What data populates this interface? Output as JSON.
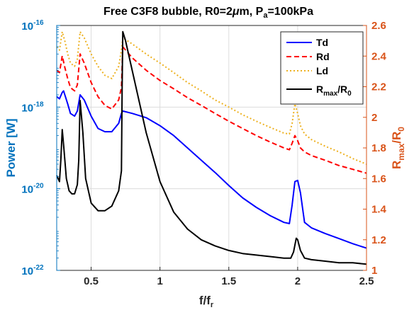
{
  "chart_data": {
    "type": "line",
    "title_parts": [
      "Free C3F8 bubble, R0=2",
      "μ",
      "m, P",
      "a",
      "=100kPa"
    ],
    "xlabel": "f/f",
    "xlabel_sub": "r",
    "ylabel_left": "Power [W]",
    "ylabel_right": "R",
    "ylabel_right_sub1": "max",
    "ylabel_right_mid": "/R",
    "ylabel_right_sub2": "0",
    "xlim": [
      0.25,
      2.5
    ],
    "ylim_left": [
      1e-22,
      1e-16
    ],
    "ylim_right": [
      1.0,
      2.6
    ],
    "y_left_scale": "log",
    "x_ticks": [
      0.5,
      1,
      1.5,
      2,
      2.5
    ],
    "x_tick_labels": [
      "0.5",
      "1",
      "1.5",
      "2",
      "2.5"
    ],
    "y_left_ticks": [
      -22,
      -20,
      -18,
      -16
    ],
    "y_left_tick_base": "10",
    "y_left_tick_exps": [
      "-22",
      "-20",
      "-18",
      "-16"
    ],
    "y_right_ticks": [
      1,
      1.2,
      1.4,
      1.6,
      1.8,
      2,
      2.2,
      2.4,
      2.6
    ],
    "y_right_tick_labels": [
      "1",
      "1.2",
      "1.4",
      "1.6",
      "1.8",
      "2",
      "2.2",
      "2.4",
      "2.6"
    ],
    "grid": true,
    "legend_position": "top-right",
    "colors": {
      "left_axis": "#0072bd",
      "right_axis": "#d95319",
      "Td": "#0000ff",
      "Rd": "#ff0000",
      "Ld": "#edb120",
      "Rmax": "#000000"
    },
    "series": [
      {
        "name": "Td",
        "axis": "left",
        "style": "solid",
        "x": [
          0.25,
          0.27,
          0.29,
          0.3,
          0.33,
          0.35,
          0.38,
          0.4,
          0.42,
          0.45,
          0.5,
          0.55,
          0.6,
          0.65,
          0.7,
          0.72,
          0.73,
          0.8,
          0.9,
          1.0,
          1.1,
          1.2,
          1.3,
          1.4,
          1.5,
          1.6,
          1.7,
          1.8,
          1.9,
          1.94,
          1.96,
          1.98,
          2.0,
          2.02,
          2.05,
          2.1,
          2.2,
          2.3,
          2.4,
          2.5
        ],
        "y": [
          1.8e-18,
          1.6e-18,
          2.3e-18,
          2.5e-18,
          1.2e-18,
          7e-19,
          6e-19,
          8e-19,
          2e-18,
          1.5e-18,
          6e-19,
          3e-19,
          2.5e-19,
          2.5e-19,
          4e-19,
          7e-19,
          8e-19,
          7e-19,
          5.5e-19,
          3.5e-19,
          2e-19,
          1e-19,
          5e-20,
          2.5e-20,
          1.2e-20,
          6e-21,
          3.5e-21,
          2.2e-21,
          1.5e-21,
          1.4e-21,
          4e-21,
          1.5e-20,
          1.6e-20,
          8e-21,
          1.5e-21,
          1.1e-21,
          8e-22,
          6e-22,
          4.5e-22,
          3.5e-22
        ]
      },
      {
        "name": "Rd",
        "axis": "left",
        "style": "dashed",
        "x": [
          0.25,
          0.27,
          0.29,
          0.31,
          0.33,
          0.35,
          0.38,
          0.4,
          0.42,
          0.45,
          0.5,
          0.55,
          0.6,
          0.65,
          0.7,
          0.72,
          0.73,
          0.8,
          0.9,
          1.0,
          1.1,
          1.2,
          1.3,
          1.4,
          1.5,
          1.6,
          1.7,
          1.8,
          1.9,
          1.94,
          1.96,
          1.98,
          2.0,
          2.02,
          2.05,
          2.1,
          2.2,
          2.3,
          2.4,
          2.5
        ],
        "y": [
          8e-18,
          7e-18,
          1.8e-17,
          9e-18,
          5e-18,
          3e-18,
          2.5e-18,
          3.5e-18,
          2e-17,
          1.2e-17,
          4e-18,
          1.8e-18,
          1.1e-18,
          9e-19,
          1.5e-18,
          3e-18,
          3e-17,
          1.6e-17,
          8e-18,
          4.5e-18,
          2.8e-18,
          1.7e-18,
          1.1e-18,
          7e-19,
          4.5e-19,
          3e-19,
          2e-19,
          1.4e-19,
          1e-19,
          9e-20,
          1.3e-19,
          2e-19,
          1.5e-19,
          1e-19,
          8e-20,
          6.5e-20,
          5e-20,
          3.7e-20,
          3e-20,
          2.4e-20
        ]
      },
      {
        "name": "Ld",
        "axis": "left",
        "style": "dotted",
        "x": [
          0.25,
          0.27,
          0.29,
          0.31,
          0.33,
          0.35,
          0.38,
          0.4,
          0.42,
          0.45,
          0.5,
          0.55,
          0.6,
          0.65,
          0.7,
          0.72,
          0.73,
          0.8,
          0.9,
          1.0,
          1.1,
          1.2,
          1.3,
          1.4,
          1.5,
          1.6,
          1.7,
          1.8,
          1.9,
          1.94,
          1.96,
          1.98,
          2.0,
          2.02,
          2.05,
          2.1,
          2.2,
          2.3,
          2.4,
          2.5
        ],
        "y": [
          3e-17,
          2.5e-17,
          7e-17,
          4e-17,
          2e-17,
          1.2e-17,
          1e-17,
          1.5e-17,
          7e-17,
          5e-17,
          2e-17,
          1e-17,
          6e-18,
          5e-18,
          1e-17,
          2.5e-17,
          5e-17,
          3.5e-17,
          2e-17,
          1.2e-17,
          7e-18,
          4e-18,
          2.5e-18,
          1.5e-18,
          1e-18,
          6.5e-19,
          4.5e-19,
          3.2e-19,
          2.3e-19,
          2.2e-19,
          4e-19,
          1.2e-18,
          7e-19,
          3.5e-19,
          2.2e-19,
          1.6e-19,
          1.1e-19,
          8e-20,
          5.5e-20,
          4e-20
        ]
      },
      {
        "name_main": "R",
        "name_sub1": "max",
        "name_mid": "/R",
        "name_sub2": "0",
        "axis": "right",
        "style": "solid",
        "x": [
          0.25,
          0.27,
          0.28,
          0.29,
          0.3,
          0.32,
          0.34,
          0.36,
          0.38,
          0.4,
          0.41,
          0.42,
          0.44,
          0.46,
          0.5,
          0.55,
          0.6,
          0.65,
          0.7,
          0.72,
          0.725,
          0.73,
          0.75,
          0.8,
          0.9,
          1.0,
          1.1,
          1.2,
          1.3,
          1.4,
          1.5,
          1.6,
          1.7,
          1.8,
          1.9,
          1.95,
          1.97,
          1.99,
          2.0,
          2.02,
          2.05,
          2.1,
          2.2,
          2.3,
          2.4,
          2.5
        ],
        "y": [
          1.62,
          1.58,
          1.72,
          1.92,
          1.82,
          1.6,
          1.52,
          1.5,
          1.5,
          1.56,
          1.72,
          2.11,
          1.9,
          1.6,
          1.44,
          1.39,
          1.39,
          1.42,
          1.52,
          1.65,
          2.2,
          2.56,
          2.5,
          2.3,
          1.9,
          1.58,
          1.38,
          1.27,
          1.2,
          1.16,
          1.13,
          1.11,
          1.1,
          1.09,
          1.08,
          1.08,
          1.12,
          1.21,
          1.2,
          1.13,
          1.08,
          1.07,
          1.06,
          1.05,
          1.05,
          1.04
        ]
      }
    ]
  }
}
